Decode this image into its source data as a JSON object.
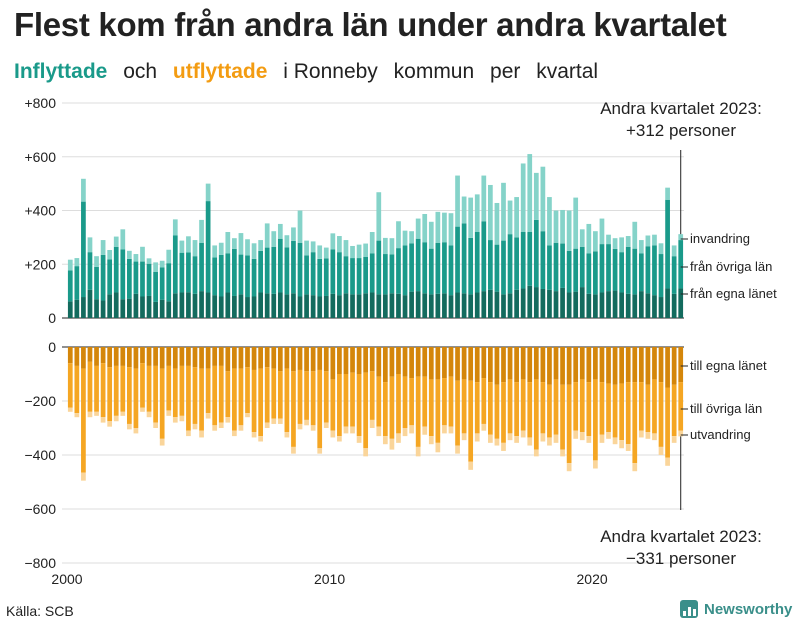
{
  "title": "Flest kom från andra län under andra kvartalet",
  "subtitle": {
    "in_label": "Inflyttade",
    "and": "och",
    "out_label": "utflyttade",
    "rest1": "i Ronneby",
    "rest2": "kommun",
    "rest3": "per",
    "rest4": "kvartal"
  },
  "source": "Källa: SCB",
  "brand": "Newsworthy",
  "colors": {
    "in_egna": "#136b5e",
    "in_ovriga": "#1a9a8a",
    "in_invandring": "#85d3c9",
    "out_egna": "#d4860a",
    "out_ovriga": "#f5a623",
    "out_utvandring": "#fad59a",
    "axis": "#222222",
    "grid": "#dddddd"
  },
  "chart_data": {
    "type": "bar",
    "stacked": true,
    "x_label": "",
    "x_start": 2000,
    "quarters_per_year": 4,
    "x_ticks": [
      "2000",
      "2010",
      "2020"
    ],
    "upper_y_ticks": [
      "+800",
      "+600",
      "+400",
      "+200",
      "0"
    ],
    "lower_y_ticks": [
      "0",
      "−200",
      "−400",
      "−600",
      "−800"
    ],
    "upper_ylim": [
      0,
      800
    ],
    "lower_ylim": [
      -800,
      0
    ],
    "annotation_top": [
      "Andra kvartalet 2023:",
      "+312 personer"
    ],
    "annotation_bottom": [
      "Andra kvartalet 2023:",
      "−331 personer"
    ],
    "series_labels_in": [
      "invandring",
      "från övriga län",
      "från egna länet"
    ],
    "series_labels_out": [
      "till egna länet",
      "till övriga län",
      "utvandring"
    ],
    "inflyttade": {
      "fran_egna_lanet": [
        62,
        68,
        78,
        105,
        70,
        65,
        88,
        95,
        70,
        72,
        90,
        80,
        82,
        60,
        68,
        62,
        92,
        95,
        96,
        90,
        100,
        95,
        85,
        80,
        95,
        82,
        88,
        78,
        80,
        95,
        92,
        90,
        95,
        88,
        92,
        80,
        88,
        85,
        80,
        82,
        90,
        85,
        92,
        88,
        88,
        92,
        95,
        88,
        88,
        92,
        90,
        85,
        98,
        100,
        92,
        88,
        90,
        92,
        85,
        95,
        92,
        88,
        95,
        100,
        105,
        98,
        88,
        92,
        105,
        110,
        120,
        115,
        108,
        105,
        100,
        112,
        95,
        98,
        115,
        90,
        88,
        95,
        100,
        102,
        95,
        90,
        88,
        100,
        92,
        85,
        78,
        110,
        90,
        110
      ],
      "fran_ovriga_lan": [
        115,
        125,
        355,
        140,
        120,
        170,
        130,
        170,
        185,
        148,
        120,
        130,
        120,
        112,
        120,
        142,
        215,
        148,
        148,
        140,
        180,
        340,
        140,
        155,
        145,
        175,
        148,
        155,
        140,
        155,
        170,
        175,
        200,
        175,
        195,
        200,
        145,
        160,
        140,
        140,
        165,
        160,
        138,
        135,
        135,
        135,
        145,
        200,
        150,
        145,
        170,
        185,
        180,
        195,
        190,
        170,
        190,
        190,
        185,
        245,
        260,
        210,
        225,
        260,
        185,
        175,
        200,
        220,
        195,
        210,
        200,
        250,
        215,
        165,
        180,
        165,
        155,
        160,
        150,
        150,
        160,
        180,
        175,
        155,
        150,
        175,
        170,
        140,
        175,
        185,
        160,
        330,
        140,
        180
      ],
      "invandring": [
        40,
        30,
        85,
        55,
        40,
        55,
        35,
        38,
        75,
        30,
        28,
        55,
        20,
        35,
        25,
        50,
        60,
        45,
        60,
        60,
        85,
        65,
        45,
        45,
        80,
        40,
        80,
        60,
        58,
        40,
        90,
        58,
        55,
        45,
        50,
        120,
        55,
        40,
        50,
        40,
        60,
        60,
        60,
        45,
        50,
        50,
        80,
        180,
        60,
        60,
        100,
        55,
        45,
        75,
        105,
        100,
        115,
        110,
        120,
        190,
        100,
        150,
        140,
        170,
        205,
        155,
        215,
        125,
        150,
        255,
        290,
        175,
        240,
        180,
        120,
        125,
        150,
        190,
        65,
        110,
        75,
        95,
        35,
        40,
        55,
        40,
        100,
        50,
        40,
        40,
        40,
        45,
        40,
        22
      ],
      "_note": "last bar (2023 Q2) totals 312"
    },
    "utflyttade": {
      "till_egna_lanet": [
        -60,
        -70,
        -80,
        -55,
        -70,
        -60,
        -75,
        -70,
        -70,
        -75,
        -80,
        -60,
        -70,
        -70,
        -80,
        -70,
        -80,
        -70,
        -70,
        -75,
        -80,
        -80,
        -70,
        -70,
        -90,
        -80,
        -80,
        -75,
        -85,
        -80,
        -75,
        -80,
        -90,
        -80,
        -90,
        -85,
        -90,
        -90,
        -85,
        -90,
        -120,
        -100,
        -100,
        -95,
        -100,
        -95,
        -90,
        -110,
        -130,
        -110,
        -100,
        -110,
        -115,
        -110,
        -110,
        -120,
        -120,
        -115,
        -110,
        -125,
        -120,
        -125,
        -130,
        -115,
        -130,
        -140,
        -130,
        -120,
        -130,
        -120,
        -130,
        -120,
        -130,
        -140,
        -120,
        -140,
        -140,
        -130,
        -120,
        -130,
        -120,
        -130,
        -135,
        -140,
        -135,
        -130,
        -130,
        -130,
        -140,
        -120,
        -130,
        -150,
        -140,
        -130
      ],
      "till_ovriga_lan": [
        -165,
        -175,
        -385,
        -185,
        -170,
        -200,
        -200,
        -185,
        -170,
        -210,
        -220,
        -165,
        -170,
        -210,
        -260,
        -165,
        -180,
        -185,
        -240,
        -210,
        -230,
        -165,
        -220,
        -210,
        -170,
        -230,
        -210,
        -170,
        -230,
        -250,
        -205,
        -185,
        -175,
        -235,
        -280,
        -200,
        -180,
        -200,
        -290,
        -190,
        -190,
        -230,
        -195,
        -200,
        -230,
        -280,
        -180,
        -185,
        -200,
        -230,
        -220,
        -190,
        -175,
        -260,
        -185,
        -210,
        -235,
        -175,
        -185,
        -240,
        -200,
        -300,
        -190,
        -170,
        -195,
        -200,
        -225,
        -200,
        -200,
        -190,
        -205,
        -260,
        -190,
        -195,
        -205,
        -240,
        -290,
        -180,
        -195,
        -200,
        -300,
        -195,
        -180,
        -195,
        -210,
        -230,
        -300,
        -180,
        -175,
        -200,
        -240,
        -260,
        -190,
        -180
      ],
      "utvandring": [
        -15,
        -15,
        -30,
        -20,
        -15,
        -20,
        -20,
        -20,
        -15,
        -20,
        -20,
        -15,
        -20,
        -20,
        -25,
        -20,
        -20,
        -20,
        -20,
        -20,
        -25,
        -20,
        -20,
        -20,
        -20,
        -20,
        -20,
        -15,
        -20,
        -20,
        -20,
        -20,
        -20,
        -20,
        -25,
        -20,
        -20,
        -20,
        -20,
        -20,
        -25,
        -20,
        -25,
        -25,
        -25,
        -30,
        -30,
        -35,
        -30,
        -40,
        -35,
        -30,
        -30,
        -35,
        -30,
        -30,
        -35,
        -30,
        -25,
        -30,
        -25,
        -30,
        -30,
        -25,
        -30,
        -25,
        -30,
        -25,
        -25,
        -25,
        -30,
        -25,
        -30,
        -30,
        -30,
        -25,
        -30,
        -30,
        -30,
        -25,
        -30,
        -30,
        -25,
        -25,
        -30,
        -25,
        -30,
        -25,
        -25,
        -25,
        -30,
        -30,
        -25,
        -21
      ],
      "_note": "last bar (2023 Q2) totals -331"
    }
  }
}
